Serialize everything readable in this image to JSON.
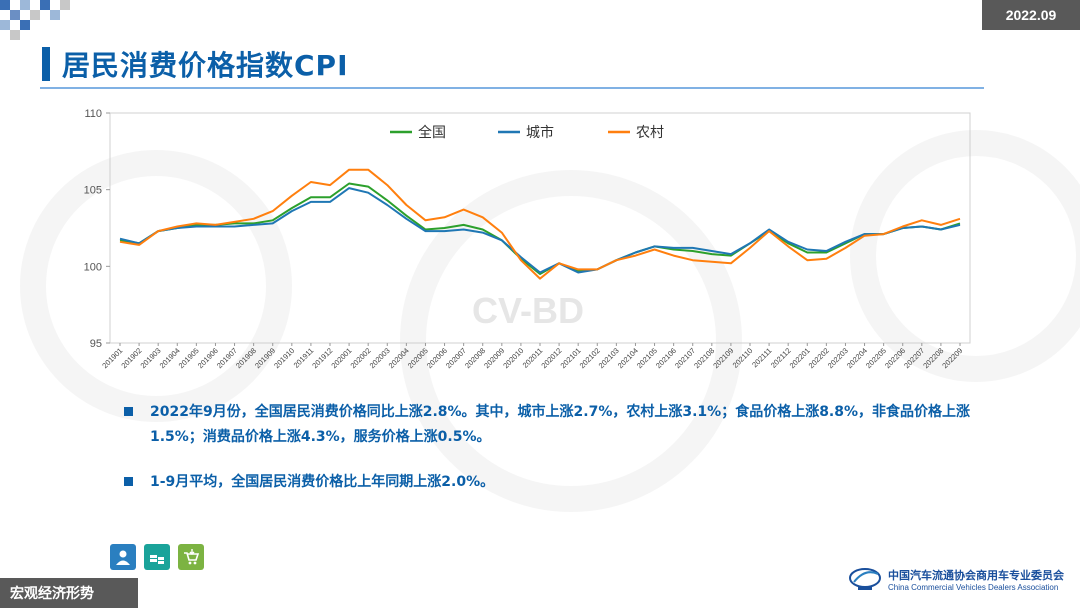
{
  "header": {
    "date": "2022.09",
    "title": "居民消费价格指数CPI"
  },
  "colors": {
    "accent": "#0b5fa8",
    "national": "#2ca02c",
    "urban": "#1f77b4",
    "rural": "#ff7f0e"
  },
  "chart_data": {
    "type": "line",
    "ylim": [
      95,
      110
    ],
    "yticks": [
      95,
      100,
      105,
      110
    ],
    "legend_position": "top-center",
    "categories": [
      "201901",
      "201902",
      "201903",
      "201904",
      "201905",
      "201906",
      "201907",
      "201908",
      "201909",
      "201910",
      "201911",
      "201912",
      "202001",
      "202002",
      "202003",
      "202004",
      "202005",
      "202006",
      "202007",
      "202008",
      "202009",
      "202010",
      "202011",
      "202012",
      "202101",
      "202102",
      "202103",
      "202104",
      "202105",
      "202106",
      "202107",
      "202108",
      "202109",
      "202110",
      "202111",
      "202112",
      "202201",
      "202202",
      "202203",
      "202204",
      "202205",
      "202206",
      "202207",
      "202208",
      "202209"
    ],
    "series": [
      {
        "name": "全国",
        "color": "#2ca02c",
        "values": [
          101.7,
          101.5,
          102.3,
          102.5,
          102.7,
          102.7,
          102.8,
          102.8,
          103.0,
          103.8,
          104.5,
          104.5,
          105.4,
          105.2,
          104.3,
          103.3,
          102.4,
          102.5,
          102.7,
          102.4,
          101.7,
          100.5,
          99.5,
          100.2,
          99.7,
          99.8,
          100.4,
          100.9,
          101.3,
          101.1,
          101.0,
          100.8,
          100.7,
          101.5,
          102.3,
          101.5,
          100.9,
          100.9,
          101.5,
          102.1,
          102.1,
          102.5,
          102.6,
          102.4,
          102.8
        ]
      },
      {
        "name": "城市",
        "color": "#1f77b4",
        "values": [
          101.8,
          101.5,
          102.3,
          102.5,
          102.6,
          102.6,
          102.6,
          102.7,
          102.8,
          103.6,
          104.2,
          104.2,
          105.1,
          104.8,
          104.0,
          103.1,
          102.3,
          102.3,
          102.4,
          102.2,
          101.7,
          100.6,
          99.6,
          100.2,
          99.6,
          99.8,
          100.4,
          100.9,
          101.3,
          101.2,
          101.2,
          101.0,
          100.8,
          101.5,
          102.4,
          101.6,
          101.1,
          101.0,
          101.6,
          102.1,
          102.1,
          102.5,
          102.6,
          102.4,
          102.7
        ]
      },
      {
        "name": "农村",
        "color": "#ff7f0e",
        "values": [
          101.6,
          101.4,
          102.3,
          102.6,
          102.8,
          102.7,
          102.9,
          103.1,
          103.6,
          104.6,
          105.5,
          105.3,
          106.3,
          106.3,
          105.3,
          104.0,
          103.0,
          103.2,
          103.7,
          103.2,
          102.2,
          100.4,
          99.2,
          100.2,
          99.8,
          99.8,
          100.4,
          100.7,
          101.1,
          100.7,
          100.4,
          100.3,
          100.2,
          101.2,
          102.3,
          101.3,
          100.4,
          100.5,
          101.2,
          102.0,
          102.1,
          102.6,
          103.0,
          102.7,
          103.1
        ]
      }
    ]
  },
  "bullets": [
    "2022年9月份，全国居民消费价格同比上涨2.8%。其中，城市上涨2.7%，农村上涨3.1%；食品价格上涨8.8%，非食品价格上涨1.5%；消费品价格上涨4.3%，服务价格上涨0.5%。",
    "1-9月平均，全国居民消费价格比上年同期上涨2.0%。"
  ],
  "footer": {
    "section": "宏观经济形势",
    "org_cn": "中国汽车流通协会商用车专业委员会",
    "org_en": "China Commercial Vehicles Dealers Association",
    "watermark": "CV-BD"
  },
  "icons": [
    "person-icon",
    "coins-icon",
    "cart-icon"
  ]
}
